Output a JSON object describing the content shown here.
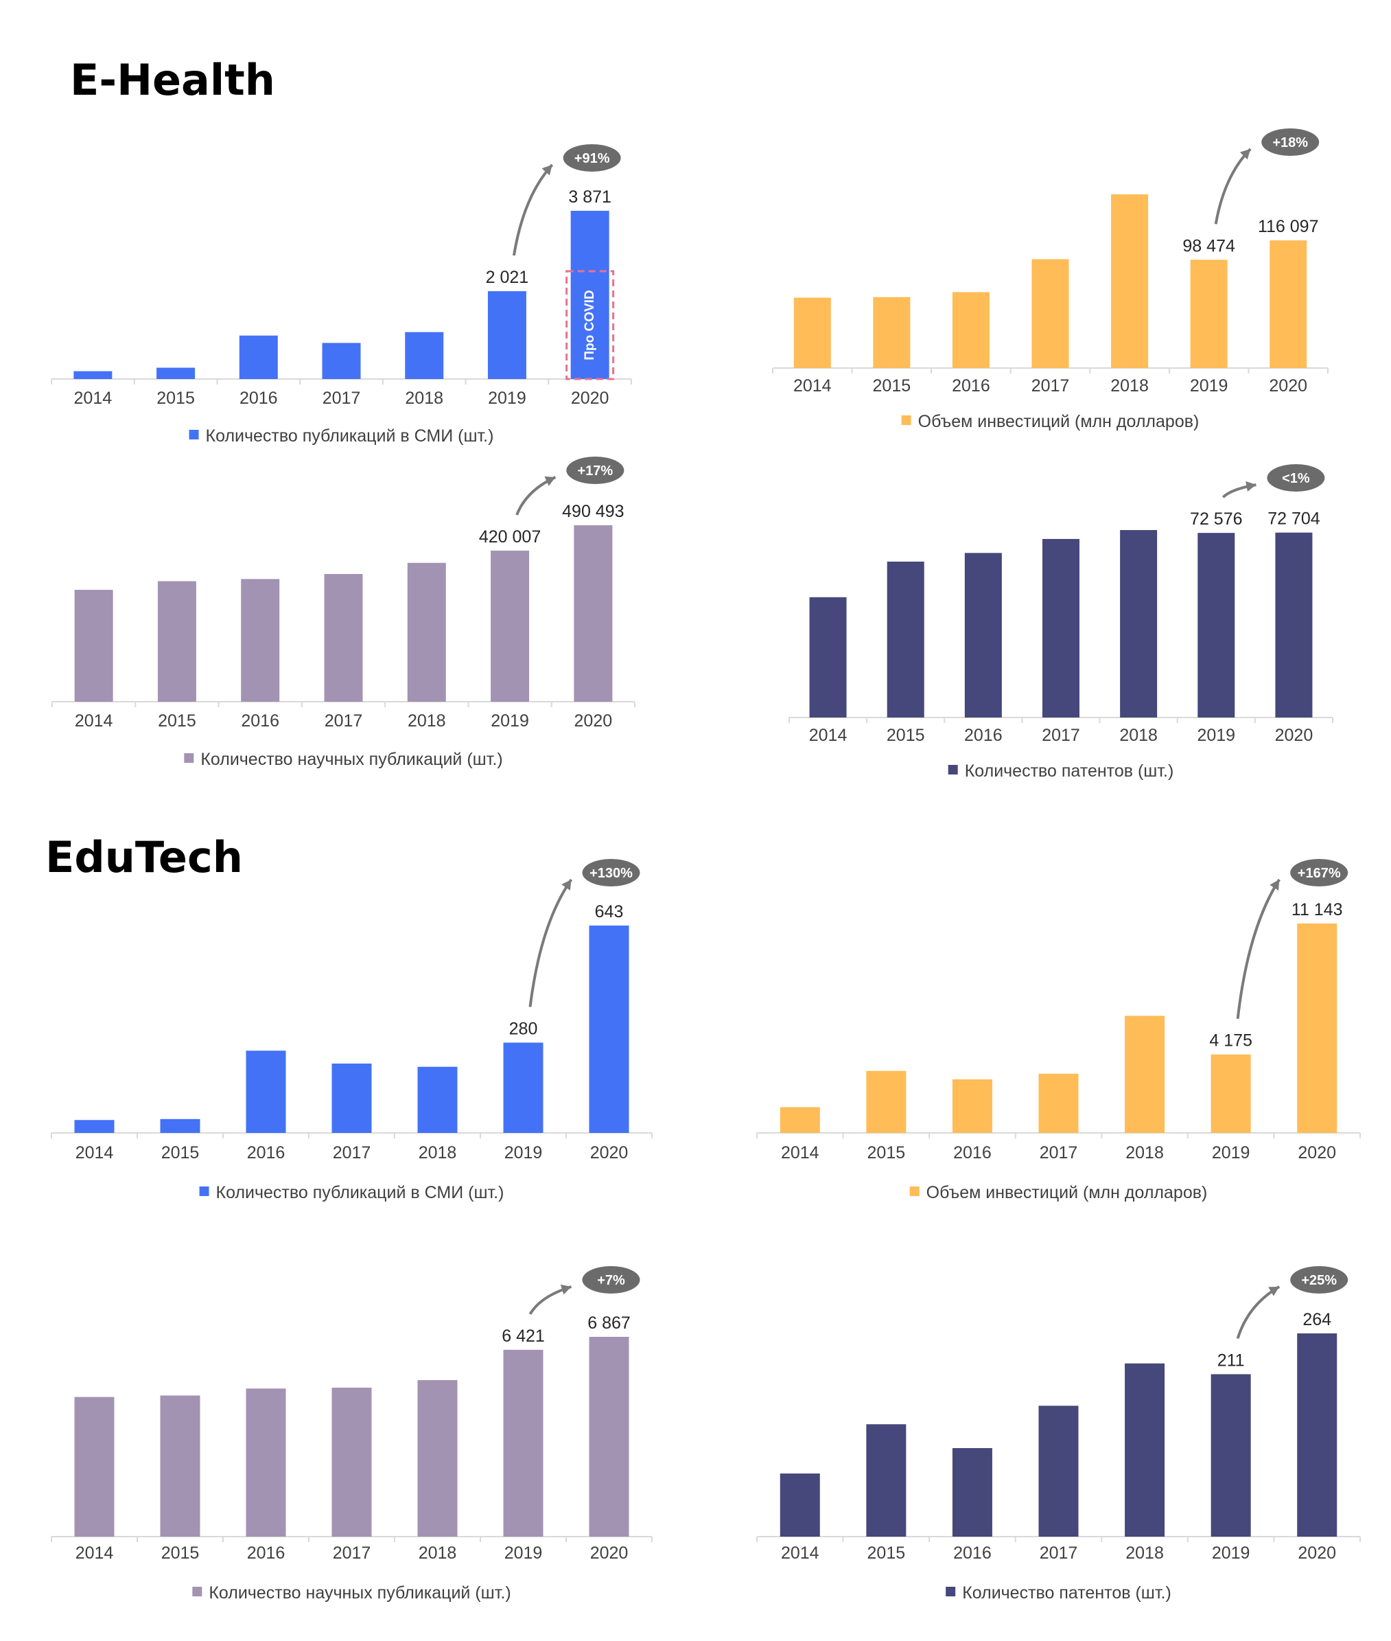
{
  "sections": [
    {
      "title": "E-Health"
    },
    {
      "title": "EduTech"
    }
  ],
  "colors": {
    "media": "#4472f7",
    "investment": "#ffbc57",
    "science": "#a393b2",
    "patents": "#46477a",
    "badge": "#6b6b6b",
    "arrow": "#7a7a7a",
    "covid_box": "#e8728c"
  },
  "chart_data": [
    {
      "id": "ehealth-media",
      "section": "E-Health",
      "type": "bar",
      "categories": [
        "2014",
        "2015",
        "2016",
        "2017",
        "2018",
        "2019",
        "2020"
      ],
      "values": [
        180,
        260,
        1000,
        830,
        1080,
        2021,
        3871
      ],
      "data_labels": [
        "",
        "",
        "",
        "",
        "",
        "2 021",
        "3 871"
      ],
      "legend": "Количество публикаций в СМИ (шт.)",
      "growth_badge": "+91%",
      "annotation": "Про COVID",
      "color": "media"
    },
    {
      "id": "ehealth-investment",
      "section": "E-Health",
      "type": "bar",
      "categories": [
        "2014",
        "2015",
        "2016",
        "2017",
        "2018",
        "2019",
        "2020"
      ],
      "values": [
        64000,
        64500,
        69000,
        99000,
        158000,
        98474,
        116097
      ],
      "data_labels": [
        "",
        "",
        "",
        "",
        "",
        "98 474",
        "116 097"
      ],
      "legend": "Объем инвестиций (млн долларов)",
      "growth_badge": "+18%",
      "color": "investment"
    },
    {
      "id": "ehealth-science",
      "section": "E-Health",
      "type": "bar",
      "categories": [
        "2014",
        "2015",
        "2016",
        "2017",
        "2018",
        "2019",
        "2020"
      ],
      "values": [
        311000,
        335000,
        341000,
        355000,
        386000,
        420007,
        490493
      ],
      "data_labels": [
        "",
        "",
        "",
        "",
        "",
        "420 007",
        "490 493"
      ],
      "legend": "Количество научных публикаций (шт.)",
      "growth_badge": "+17%",
      "color": "science"
    },
    {
      "id": "ehealth-patents",
      "section": "E-Health",
      "type": "bar",
      "categories": [
        "2014",
        "2015",
        "2016",
        "2017",
        "2018",
        "2019",
        "2020"
      ],
      "values": [
        47300,
        61300,
        64700,
        70200,
        73700,
        72576,
        72704
      ],
      "data_labels": [
        "",
        "",
        "",
        "",
        "",
        "72 576",
        "72 704"
      ],
      "legend": "Количество патентов (шт.)",
      "growth_badge": "<1%",
      "color": "patents"
    },
    {
      "id": "edutech-media",
      "section": "EduTech",
      "type": "bar",
      "categories": [
        "2014",
        "2015",
        "2016",
        "2017",
        "2018",
        "2019",
        "2020"
      ],
      "values": [
        40,
        43,
        255,
        215,
        205,
        280,
        643
      ],
      "data_labels": [
        "",
        "",
        "",
        "",
        "",
        "280",
        "643"
      ],
      "legend": "Количество публикаций в СМИ (шт.)",
      "growth_badge": "+130%",
      "color": "media"
    },
    {
      "id": "edutech-investment",
      "section": "EduTech",
      "type": "bar",
      "categories": [
        "2014",
        "2015",
        "2016",
        "2017",
        "2018",
        "2019",
        "2020"
      ],
      "values": [
        1370,
        3300,
        2850,
        3150,
        6230,
        4175,
        11143
      ],
      "data_labels": [
        "",
        "",
        "",
        "",
        "",
        "4 175",
        "11 143"
      ],
      "legend": "Объем инвестиций (млн долларов)",
      "growth_badge": "+167%",
      "color": "investment"
    },
    {
      "id": "edutech-science",
      "section": "EduTech",
      "type": "bar",
      "categories": [
        "2014",
        "2015",
        "2016",
        "2017",
        "2018",
        "2019",
        "2020"
      ],
      "values": [
        4800,
        4850,
        5090,
        5120,
        5380,
        6421,
        6867
      ],
      "data_labels": [
        "",
        "",
        "",
        "",
        "",
        "6 421",
        "6 867"
      ],
      "legend": "Количество научных публикаций (шт.)",
      "growth_badge": "+7%",
      "color": "science"
    },
    {
      "id": "edutech-patents",
      "section": "EduTech",
      "type": "bar",
      "categories": [
        "2014",
        "2015",
        "2016",
        "2017",
        "2018",
        "2019",
        "2020"
      ],
      "values": [
        82,
        146,
        115,
        170,
        225,
        211,
        264
      ],
      "data_labels": [
        "",
        "",
        "",
        "",
        "",
        "211",
        "264"
      ],
      "legend": "Количество патентов (шт.)",
      "growth_badge": "+25%",
      "color": "patents"
    }
  ]
}
